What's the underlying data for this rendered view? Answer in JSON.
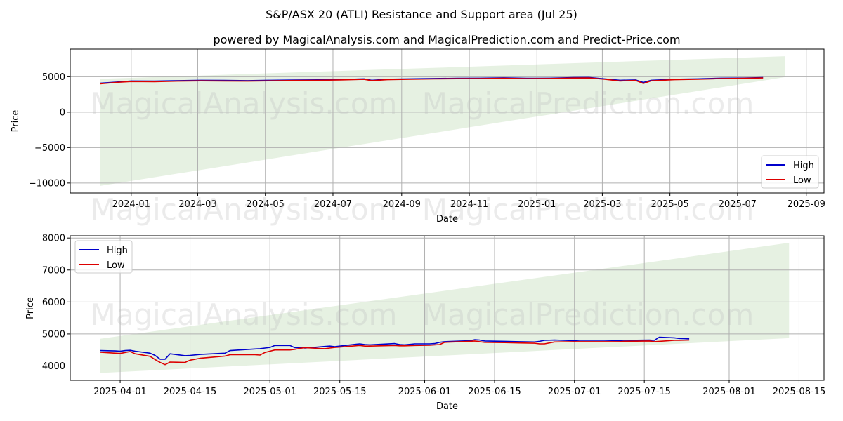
{
  "figure": {
    "title": "S&P/ASX 20 (ATLI) Resistance and Support area (Jul 25)",
    "subtitle": "powered by MagicalAnalysis.com and MagicalPrediction.com and Predict-Price.com",
    "watermarks": [
      "MagicalAnalysis.com",
      "MagicalPrediction.com"
    ]
  },
  "colors": {
    "high": "#0000cc",
    "low": "#dd0000",
    "band": "#d8ead3",
    "grid": "#b0b0b0"
  },
  "chart_data": [
    {
      "type": "line",
      "xlabel": "Date",
      "ylabel": "Price",
      "grid": true,
      "legend": "lower-right",
      "x_ticks": [
        "2024-01",
        "2024-03",
        "2024-05",
        "2024-07",
        "2024-09",
        "2024-11",
        "2025-01",
        "2025-03",
        "2025-05",
        "2025-07",
        "2025-09"
      ],
      "y_ticks": [
        5000,
        0,
        -5000,
        -10000
      ],
      "y_tick_labels": [
        "5000",
        "0",
        "−5000",
        "−10000"
      ],
      "xlim": [
        "2023-11-07",
        "2025-09-17"
      ],
      "ylim": [
        -11400,
        8900
      ],
      "band": {
        "x_start": "2023-12-04",
        "x_end": "2025-08-13",
        "upper": [
          4700,
          7900
        ],
        "lower": [
          -10400,
          4950
        ]
      },
      "series": [
        {
          "name": "High",
          "x": [
            "2023-12-04",
            "2023-12-18",
            "2024-01-01",
            "2024-01-22",
            "2024-02-12",
            "2024-03-04",
            "2024-03-25",
            "2024-04-15",
            "2024-05-06",
            "2024-05-27",
            "2024-06-17",
            "2024-07-08",
            "2024-07-29",
            "2024-08-05",
            "2024-08-19",
            "2024-09-09",
            "2024-09-30",
            "2024-10-21",
            "2024-11-11",
            "2024-12-02",
            "2024-12-23",
            "2025-01-13",
            "2025-02-03",
            "2025-02-17",
            "2025-03-03",
            "2025-03-17",
            "2025-03-31",
            "2025-04-07",
            "2025-04-14",
            "2025-05-05",
            "2025-05-26",
            "2025-06-16",
            "2025-07-07",
            "2025-07-24"
          ],
          "values": [
            4100,
            4250,
            4400,
            4380,
            4450,
            4500,
            4480,
            4450,
            4500,
            4530,
            4560,
            4600,
            4700,
            4500,
            4650,
            4700,
            4750,
            4780,
            4800,
            4850,
            4780,
            4800,
            4880,
            4900,
            4700,
            4500,
            4550,
            4200,
            4500,
            4650,
            4700,
            4800,
            4820,
            4880
          ]
        },
        {
          "name": "Low",
          "x": [
            "2023-12-04",
            "2023-12-18",
            "2024-01-01",
            "2024-01-22",
            "2024-02-12",
            "2024-03-04",
            "2024-03-25",
            "2024-04-15",
            "2024-05-06",
            "2024-05-27",
            "2024-06-17",
            "2024-07-08",
            "2024-07-29",
            "2024-08-05",
            "2024-08-19",
            "2024-09-09",
            "2024-09-30",
            "2024-10-21",
            "2024-11-11",
            "2024-12-02",
            "2024-12-23",
            "2025-01-13",
            "2025-02-03",
            "2025-02-17",
            "2025-03-03",
            "2025-03-17",
            "2025-03-31",
            "2025-04-07",
            "2025-04-14",
            "2025-05-05",
            "2025-05-26",
            "2025-06-16",
            "2025-07-07",
            "2025-07-24"
          ],
          "values": [
            4000,
            4200,
            4330,
            4300,
            4380,
            4420,
            4400,
            4380,
            4420,
            4470,
            4500,
            4550,
            4630,
            4450,
            4580,
            4640,
            4690,
            4720,
            4740,
            4790,
            4720,
            4750,
            4820,
            4830,
            4640,
            4400,
            4480,
            4050,
            4420,
            4580,
            4640,
            4740,
            4780,
            4830
          ]
        }
      ]
    },
    {
      "type": "line",
      "xlabel": "Date",
      "ylabel": "Price",
      "grid": true,
      "legend": "upper-left",
      "x_ticks": [
        "2025-04-01",
        "2025-04-15",
        "2025-05-01",
        "2025-05-15",
        "2025-06-01",
        "2025-06-15",
        "2025-07-01",
        "2025-07-15",
        "2025-08-01",
        "2025-08-15"
      ],
      "y_ticks": [
        4000,
        5000,
        6000,
        7000,
        8000
      ],
      "y_tick_labels": [
        "4000",
        "5000",
        "6000",
        "7000",
        "8000"
      ],
      "xlim": [
        "2025-03-22",
        "2025-08-20"
      ],
      "ylim": [
        3550,
        8070
      ],
      "band": {
        "x_start": "2025-03-28",
        "x_end": "2025-08-13",
        "upper": [
          4850,
          7850
        ],
        "lower": [
          3780,
          4870
        ]
      },
      "series": [
        {
          "name": "High",
          "x": [
            "2025-03-28",
            "2025-03-31",
            "2025-04-01",
            "2025-04-02",
            "2025-04-03",
            "2025-04-04",
            "2025-04-07",
            "2025-04-08",
            "2025-04-09",
            "2025-04-10",
            "2025-04-11",
            "2025-04-14",
            "2025-04-15",
            "2025-04-17",
            "2025-04-22",
            "2025-04-23",
            "2025-04-28",
            "2025-04-29",
            "2025-04-30",
            "2025-05-01",
            "2025-05-02",
            "2025-05-05",
            "2025-05-06",
            "2025-05-07",
            "2025-05-08",
            "2025-05-12",
            "2025-05-13",
            "2025-05-14",
            "2025-05-15",
            "2025-05-19",
            "2025-05-20",
            "2025-05-21",
            "2025-05-26",
            "2025-05-27",
            "2025-05-28",
            "2025-05-30",
            "2025-06-02",
            "2025-06-03",
            "2025-06-04",
            "2025-06-05",
            "2025-06-10",
            "2025-06-11",
            "2025-06-12",
            "2025-06-13",
            "2025-06-17",
            "2025-06-20",
            "2025-06-23",
            "2025-06-24",
            "2025-06-25",
            "2025-06-27",
            "2025-07-01",
            "2025-07-02",
            "2025-07-07",
            "2025-07-10",
            "2025-07-11",
            "2025-07-16",
            "2025-07-17",
            "2025-07-18",
            "2025-07-21",
            "2025-07-22",
            "2025-07-24"
          ],
          "values": [
            4480,
            4470,
            4460,
            4480,
            4490,
            4460,
            4400,
            4330,
            4210,
            4210,
            4380,
            4320,
            4330,
            4360,
            4400,
            4480,
            4530,
            4540,
            4560,
            4580,
            4640,
            4640,
            4570,
            4580,
            4560,
            4610,
            4620,
            4600,
            4620,
            4690,
            4670,
            4660,
            4700,
            4670,
            4660,
            4690,
            4690,
            4700,
            4740,
            4760,
            4790,
            4820,
            4810,
            4780,
            4770,
            4760,
            4750,
            4770,
            4800,
            4810,
            4790,
            4800,
            4800,
            4790,
            4800,
            4810,
            4800,
            4900,
            4880,
            4860,
            4850
          ]
        },
        {
          "name": "Low",
          "x": [
            "2025-03-28",
            "2025-03-31",
            "2025-04-01",
            "2025-04-02",
            "2025-04-03",
            "2025-04-04",
            "2025-04-07",
            "2025-04-08",
            "2025-04-09",
            "2025-04-10",
            "2025-04-11",
            "2025-04-14",
            "2025-04-15",
            "2025-04-17",
            "2025-04-22",
            "2025-04-23",
            "2025-04-28",
            "2025-04-29",
            "2025-04-30",
            "2025-05-01",
            "2025-05-02",
            "2025-05-05",
            "2025-05-06",
            "2025-05-07",
            "2025-05-08",
            "2025-05-12",
            "2025-05-13",
            "2025-05-14",
            "2025-05-15",
            "2025-05-19",
            "2025-05-20",
            "2025-05-21",
            "2025-05-26",
            "2025-05-27",
            "2025-05-28",
            "2025-05-30",
            "2025-06-02",
            "2025-06-03",
            "2025-06-04",
            "2025-06-05",
            "2025-06-10",
            "2025-06-11",
            "2025-06-12",
            "2025-06-13",
            "2025-06-17",
            "2025-06-20",
            "2025-06-23",
            "2025-06-24",
            "2025-06-25",
            "2025-06-27",
            "2025-07-01",
            "2025-07-02",
            "2025-07-07",
            "2025-07-10",
            "2025-07-11",
            "2025-07-16",
            "2025-07-17",
            "2025-07-18",
            "2025-07-21",
            "2025-07-22",
            "2025-07-24"
          ],
          "values": [
            4430,
            4400,
            4390,
            4420,
            4450,
            4380,
            4300,
            4200,
            4110,
            4040,
            4120,
            4110,
            4180,
            4240,
            4310,
            4350,
            4350,
            4340,
            4420,
            4460,
            4500,
            4500,
            4520,
            4550,
            4570,
            4540,
            4560,
            4580,
            4590,
            4640,
            4620,
            4620,
            4640,
            4630,
            4630,
            4640,
            4650,
            4660,
            4670,
            4740,
            4770,
            4780,
            4760,
            4740,
            4730,
            4720,
            4710,
            4690,
            4690,
            4750,
            4760,
            4760,
            4760,
            4760,
            4770,
            4780,
            4760,
            4770,
            4800,
            4800,
            4810
          ]
        }
      ]
    }
  ]
}
